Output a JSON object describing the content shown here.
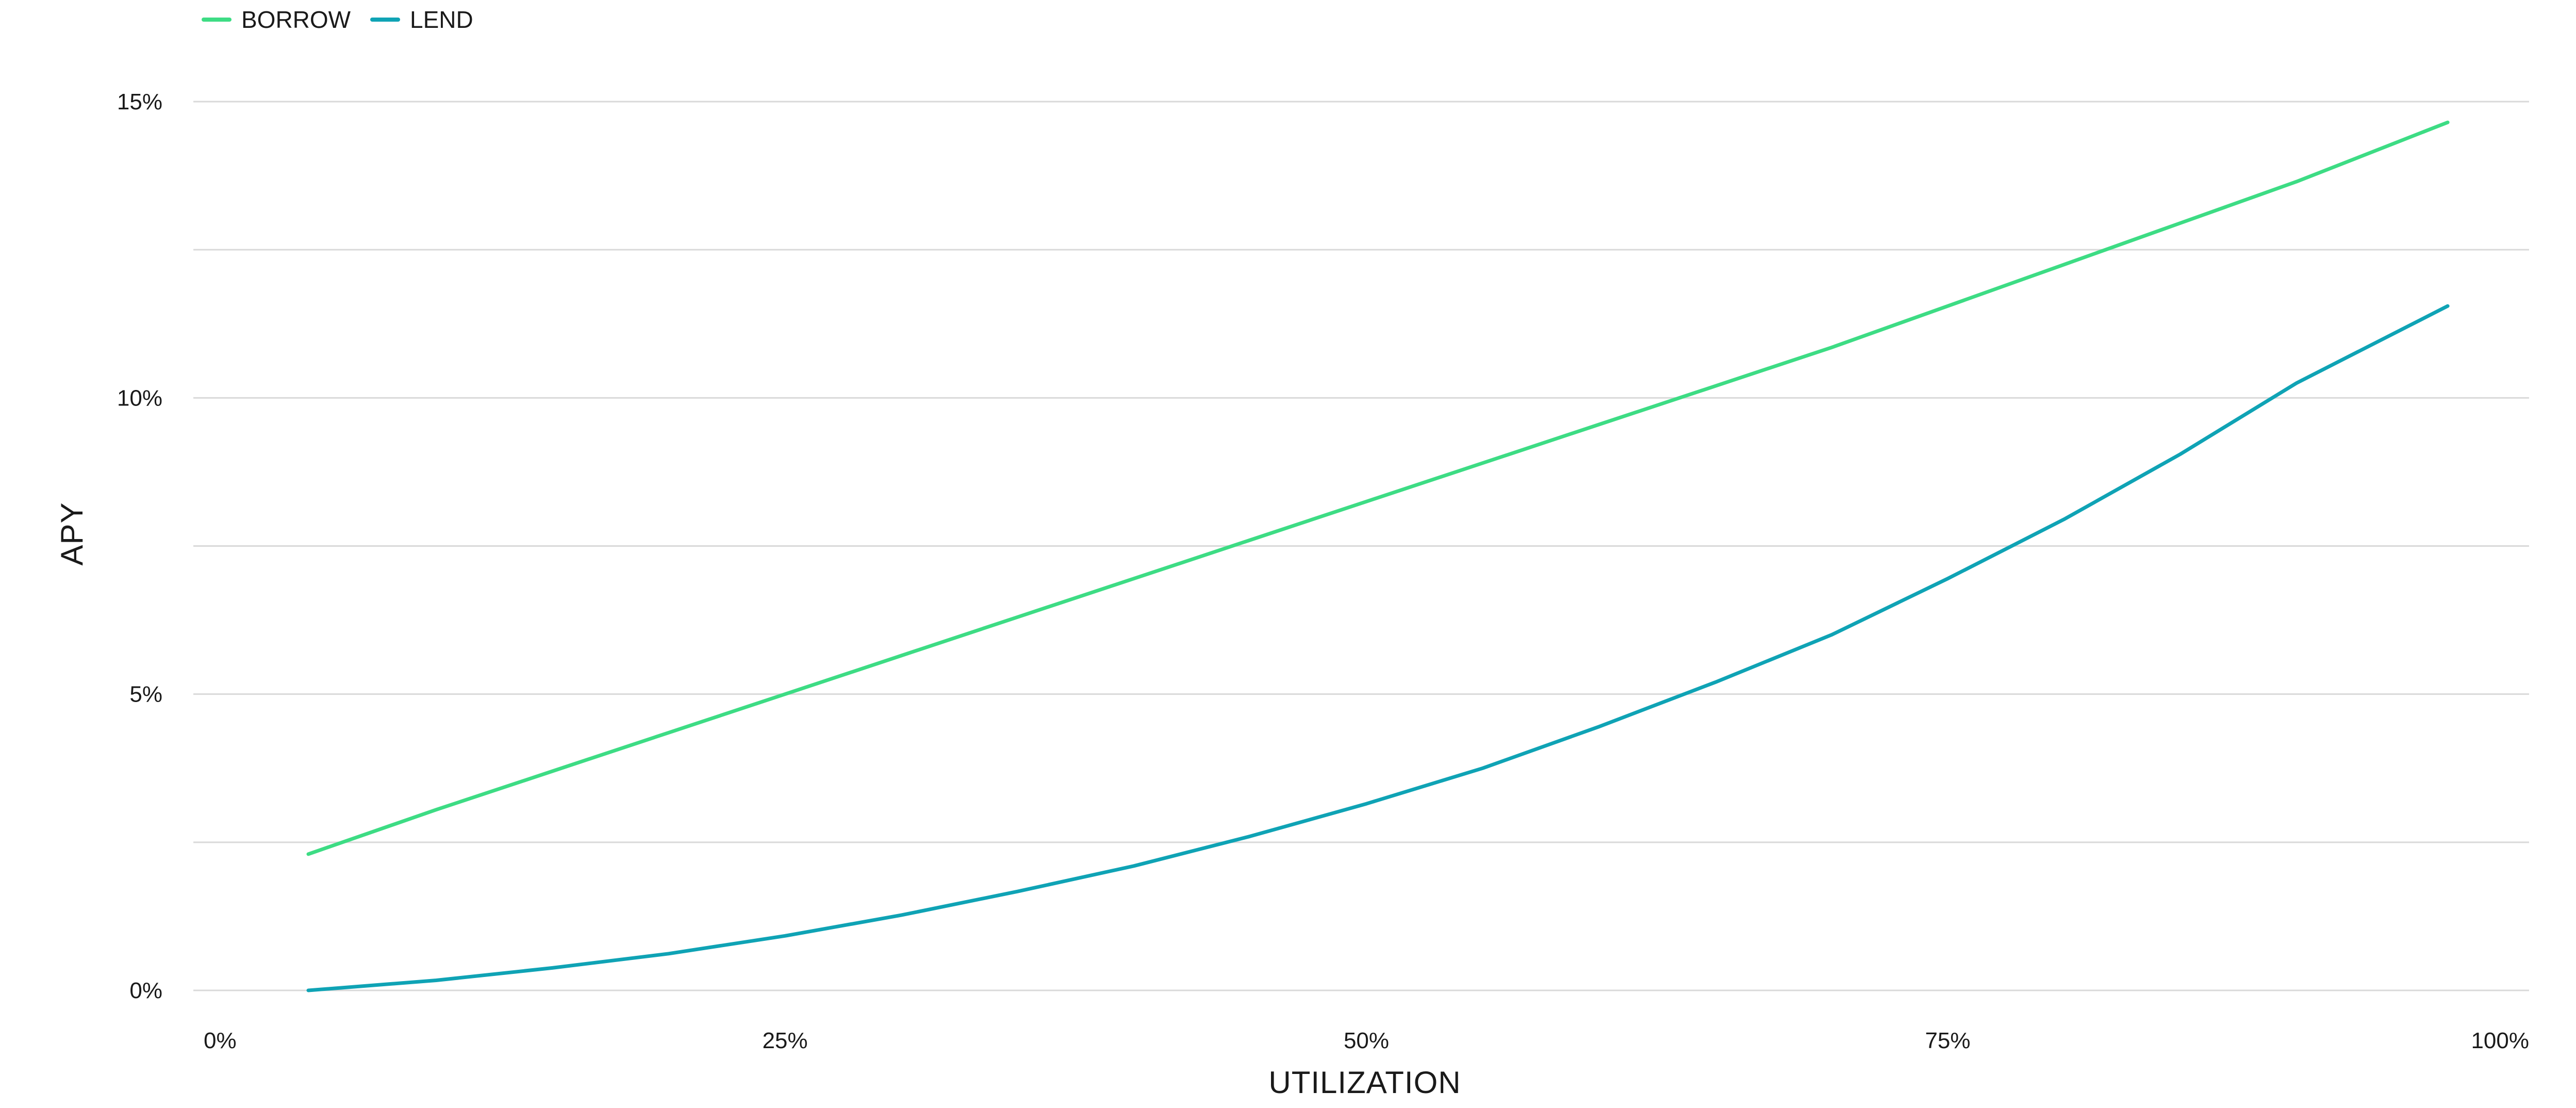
{
  "chart_data": {
    "type": "line",
    "xlabel": "UTILIZATION",
    "ylabel": "APY",
    "x_ticks": [
      "0%",
      "25%",
      "50%",
      "75%",
      "100%"
    ],
    "y_ticks": [
      "0%",
      "5%",
      "10%",
      "15%"
    ],
    "xlim": [
      0,
      100
    ],
    "ylim": [
      0,
      15
    ],
    "y_grid_step": 2.5,
    "grid": true,
    "legend_position": "top-left",
    "colors": {
      "borrow": "#3ddc84",
      "lend": "#0fa3b5",
      "grid": "#d9d9d9"
    },
    "series": [
      {
        "name": "BORROW",
        "color_key": "borrow",
        "points": [
          [
            4.5,
            2.3
          ],
          [
            10,
            3.05
          ],
          [
            15,
            3.7
          ],
          [
            20,
            4.35
          ],
          [
            25,
            5.0
          ],
          [
            30,
            5.65
          ],
          [
            35,
            6.3
          ],
          [
            40,
            6.95
          ],
          [
            45,
            7.6
          ],
          [
            50,
            8.25
          ],
          [
            55,
            8.9
          ],
          [
            60,
            9.55
          ],
          [
            65,
            10.2
          ],
          [
            70,
            10.85
          ],
          [
            75,
            11.55
          ],
          [
            80,
            12.25
          ],
          [
            85,
            12.95
          ],
          [
            90,
            13.65
          ],
          [
            96.5,
            14.65
          ]
        ]
      },
      {
        "name": "LEND",
        "color_key": "lend",
        "points": [
          [
            4.5,
            0.0
          ],
          [
            10,
            0.17
          ],
          [
            15,
            0.38
          ],
          [
            20,
            0.62
          ],
          [
            25,
            0.92
          ],
          [
            30,
            1.27
          ],
          [
            35,
            1.67
          ],
          [
            40,
            2.1
          ],
          [
            45,
            2.6
          ],
          [
            50,
            3.15
          ],
          [
            55,
            3.75
          ],
          [
            60,
            4.45
          ],
          [
            65,
            5.2
          ],
          [
            70,
            6.0
          ],
          [
            75,
            6.95
          ],
          [
            80,
            7.95
          ],
          [
            85,
            9.05
          ],
          [
            90,
            10.25
          ],
          [
            96.5,
            11.55
          ]
        ]
      }
    ]
  }
}
